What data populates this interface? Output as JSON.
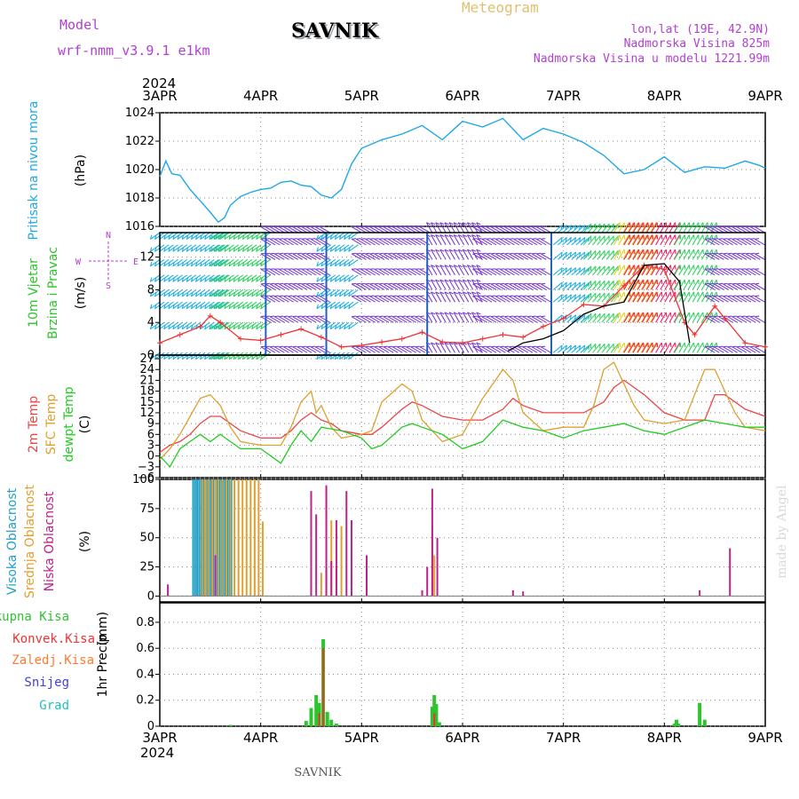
{
  "header": {
    "model_label": "Model",
    "model_name": "wrf-nmm_v3.9.1 e1km",
    "station": "SAVNIK",
    "title": "Meteogram",
    "coords": "lon,lat (19E, 42.9N)",
    "altitude": "Nadmorska Visina 825m",
    "model_altitude": "Nadmorska Visina u modelu 1221.99m",
    "year_top": "2024",
    "year_bottom": "2024",
    "footer_station": "SAVNIK",
    "credit": "made by Angel"
  },
  "colors": {
    "pressure": "#1ea8e6",
    "wind_label": "#2ec42e",
    "wind_legend": "#b040d0",
    "temp2m": "#ee4444",
    "sfc": "#e0a030",
    "dewpt": "#22cc22",
    "visoka": "#22a0c8",
    "srednja": "#e0a030",
    "niska": "#c0208a",
    "ukupna": "#2ec42e",
    "konvek": "#ee3333",
    "zaledj": "#ff7a30",
    "snijeg": "#4040e0",
    "grad": "#20c0c0",
    "header_purple": "#b040d0",
    "header_gold": "#e0c070"
  },
  "chart_data": [
    {
      "type": "line",
      "panel": "pressure",
      "xlabel": "",
      "ylabel": "Pritisak na nivou mora",
      "unit": "(hPa)",
      "x_ticks": [
        "3APR",
        "4APR",
        "5APR",
        "6APR",
        "7APR",
        "8APR",
        "9APR"
      ],
      "ylim": [
        1016,
        1024
      ],
      "y_ticks": [
        1016,
        1018,
        1020,
        1022,
        1024
      ],
      "grid": true,
      "series": [
        {
          "name": "",
          "x": [
            0,
            0.06,
            0.12,
            0.2,
            0.3,
            0.4,
            0.5,
            0.58,
            0.64,
            0.7,
            0.8,
            0.9,
            1.0,
            1.1,
            1.2,
            1.3,
            1.4,
            1.5,
            1.6,
            1.7,
            1.8,
            1.9,
            2.0,
            2.2,
            2.4,
            2.6,
            2.8,
            3.0,
            3.2,
            3.4,
            3.6,
            3.8,
            4.0,
            4.2,
            4.4,
            4.6,
            4.8,
            5.0,
            5.2,
            5.4,
            5.6,
            5.8,
            5.94,
            6.0
          ],
          "y": [
            1019.5,
            1020.6,
            1019.7,
            1019.6,
            1018.6,
            1017.8,
            1017,
            1016.3,
            1016.6,
            1017.5,
            1018.1,
            1018.4,
            1018.6,
            1018.7,
            1019.1,
            1019.2,
            1018.9,
            1018.8,
            1018.2,
            1018,
            1018.6,
            1020.4,
            1021.5,
            1022.1,
            1022.5,
            1023.1,
            1022.1,
            1023.4,
            1023,
            1023.6,
            1022.1,
            1022.9,
            1022.5,
            1021.9,
            1021,
            1019.7,
            1020,
            1020.9,
            1019.8,
            1020.2,
            1020.1,
            1020.6,
            1020.3,
            1020.1
          ]
        }
      ]
    },
    {
      "type": "line",
      "panel": "wind",
      "xlabel": "",
      "ylabel": "10m Vjetar Brzina i Pravac",
      "ylabel_parts": [
        "10m Vjetar",
        "Brzina i Pravac"
      ],
      "unit": "(m/s)",
      "legend_letters": [
        "N",
        "E",
        "W",
        "S"
      ],
      "ylim": [
        0,
        15
      ],
      "y_ticks": [
        0,
        4,
        8,
        12
      ],
      "grid": true,
      "series": [
        {
          "name": "",
          "x": [
            0,
            0.2,
            0.4,
            0.5,
            0.6,
            0.8,
            1.0,
            1.2,
            1.4,
            1.6,
            1.8,
            2.0,
            2.2,
            2.4,
            2.6,
            2.8,
            3.0,
            3.2,
            3.4,
            3.6,
            3.8,
            4.0,
            4.2,
            4.4,
            4.6,
            4.8,
            5.0,
            5.2,
            5.3,
            5.5,
            5.6,
            5.8,
            6.0
          ],
          "y": [
            1.5,
            2.5,
            3.5,
            4.8,
            4.0,
            2.0,
            1.8,
            2.5,
            3.2,
            2.2,
            1.0,
            1.2,
            1.6,
            2.0,
            2.8,
            1.6,
            1.5,
            2.0,
            2.5,
            2.2,
            3.5,
            4.5,
            6.2,
            6.0,
            8.5,
            11.0,
            10.5,
            4.0,
            2.5,
            6.0,
            4.5,
            1.5,
            1.0
          ]
        },
        {
          "name": "",
          "x": [
            3.45,
            3.6,
            3.8,
            4.0,
            4.2,
            4.4,
            4.6,
            4.8,
            5.0,
            5.15,
            5.25
          ],
          "y": [
            0.5,
            1.5,
            2.0,
            3.0,
            5.0,
            6.0,
            6.5,
            11.0,
            11.2,
            9.0,
            1.5
          ]
        }
      ],
      "barb_rows_y": [
        0.3,
        4.0,
        6.5,
        8.0,
        9.8,
        11.7,
        13.5,
        15.0
      ],
      "barb_sections": [
        {
          "x": [
            0.0,
            0.7
          ],
          "color": "#20b0e0",
          "dir": 235
        },
        {
          "x": [
            0.6,
            1.1
          ],
          "color": "#30d060",
          "dir": 235
        },
        {
          "x": [
            1.1,
            1.7
          ],
          "color": "#7a3fd0",
          "dir": 300
        },
        {
          "x": [
            1.65,
            2.0
          ],
          "color": "#20b0e0",
          "dir": 235
        },
        {
          "x": [
            2.0,
            2.7
          ],
          "color": "#7a3fd0",
          "dir": 300
        },
        {
          "x": [
            2.7,
            3.2
          ],
          "color": "#7a3fd0",
          "dir": 330
        },
        {
          "x": [
            3.2,
            3.9
          ],
          "color": "#7a3fd0",
          "dir": 300
        },
        {
          "x": [
            3.9,
            4.2
          ],
          "color": "#20b0e0",
          "dir": 50
        },
        {
          "x": [
            4.2,
            4.5
          ],
          "color": "#30d060",
          "dir": 40
        },
        {
          "x": [
            4.5,
            4.9
          ],
          "color": "#e8d020",
          "dir": 30
        },
        {
          "x": [
            4.6,
            5.1
          ],
          "color": "#ee2060",
          "dir": 30
        },
        {
          "x": [
            5.1,
            5.5
          ],
          "color": "#30d060",
          "dir": 30
        },
        {
          "x": [
            5.5,
            6.0
          ],
          "color": "#7a3fd0",
          "dir": 300
        }
      ]
    },
    {
      "type": "line",
      "panel": "temperature",
      "xlabel": "",
      "ylabel": "2m Temp / SFC Temp / dewpt Temp",
      "ylabel_parts": [
        "2m Temp",
        "SFC Temp",
        "dewpt Temp"
      ],
      "unit": "(C)",
      "ylim": [
        -6,
        28
      ],
      "y_ticks": [
        -6,
        -3,
        0,
        3,
        6,
        9,
        12,
        15,
        18,
        21,
        24,
        27
      ],
      "grid": true,
      "series": [
        {
          "name": "2m Temp",
          "x": [
            0,
            0.1,
            0.2,
            0.3,
            0.4,
            0.5,
            0.6,
            0.7,
            0.8,
            1.0,
            1.2,
            1.3,
            1.4,
            1.5,
            1.6,
            1.7,
            1.8,
            2.0,
            2.1,
            2.2,
            2.4,
            2.5,
            2.6,
            2.8,
            3.0,
            3.2,
            3.4,
            3.5,
            3.6,
            3.8,
            4.0,
            4.2,
            4.4,
            4.5,
            4.6,
            4.8,
            5.0,
            5.2,
            5.4,
            5.5,
            5.6,
            5.8,
            6.0
          ],
          "y": [
            1,
            3,
            4,
            6,
            9,
            11,
            11,
            9,
            7,
            5,
            5,
            7,
            10,
            12,
            10,
            9,
            7,
            6,
            6,
            8,
            13,
            15,
            14,
            11,
            10,
            10,
            13,
            16,
            14,
            12,
            12,
            12,
            15,
            19,
            21,
            17,
            12,
            10,
            10,
            17,
            17,
            13,
            11
          ]
        },
        {
          "name": "SFC Temp",
          "x": [
            0,
            0.1,
            0.2,
            0.3,
            0.4,
            0.5,
            0.6,
            0.7,
            0.8,
            1.0,
            1.2,
            1.3,
            1.4,
            1.5,
            1.55,
            1.6,
            1.7,
            1.8,
            2.0,
            2.1,
            2.2,
            2.4,
            2.5,
            2.6,
            2.8,
            3.0,
            3.2,
            3.4,
            3.5,
            3.6,
            3.8,
            4.0,
            4.2,
            4.3,
            4.4,
            4.5,
            4.6,
            4.7,
            4.8,
            5.0,
            5.2,
            5.3,
            5.4,
            5.5,
            5.6,
            5.7,
            5.8,
            6.0
          ],
          "y": [
            -1,
            2,
            6,
            11,
            16,
            17,
            14,
            8,
            4,
            3,
            3,
            8,
            15,
            18,
            12,
            14,
            8,
            5,
            6,
            7,
            15,
            20,
            18,
            10,
            4,
            6,
            16,
            24,
            21,
            12,
            7,
            8,
            8,
            14,
            24,
            26,
            20,
            14,
            10,
            9,
            10,
            17,
            24,
            24,
            18,
            12,
            8,
            7
          ]
        },
        {
          "name": "dewpt Temp",
          "x": [
            0,
            0.1,
            0.2,
            0.3,
            0.4,
            0.5,
            0.6,
            0.7,
            0.8,
            1.0,
            1.2,
            1.3,
            1.4,
            1.5,
            1.6,
            1.8,
            2.0,
            2.1,
            2.2,
            2.4,
            2.5,
            2.6,
            2.8,
            3.0,
            3.2,
            3.4,
            3.6,
            3.8,
            4.0,
            4.2,
            4.4,
            4.6,
            4.8,
            5.0,
            5.2,
            5.4,
            5.6,
            5.8,
            6.0
          ],
          "y": [
            0,
            -3,
            2,
            4,
            6,
            4,
            6,
            4,
            2,
            2,
            -2,
            3,
            7,
            4,
            8,
            7,
            5,
            2,
            3,
            8,
            9,
            8,
            6,
            2,
            4,
            10,
            8,
            7,
            5,
            7,
            8,
            9,
            7,
            6,
            8,
            10,
            9,
            8,
            8
          ]
        }
      ]
    },
    {
      "type": "bar",
      "panel": "clouds",
      "xlabel": "",
      "ylabel": "Visoka Oblacnost / Srednja Oblacnost / Niska Oblacnost",
      "ylabel_parts": [
        "Visoka Oblacnost",
        "Srednja Oblacnost",
        "Niska Oblacnost"
      ],
      "unit": "(%)",
      "ylim": [
        -5,
        100
      ],
      "y_ticks": [
        0,
        25,
        50,
        75,
        100
      ],
      "grid": true,
      "series": [
        {
          "name": "Visoka Oblacnost",
          "x": [
            0.33,
            0.35,
            0.37,
            0.39,
            0.41,
            0.43,
            0.45,
            0.47,
            0.49,
            0.51,
            0.53,
            0.55,
            0.57,
            0.59,
            0.61,
            0.63,
            0.65,
            0.67,
            0.69,
            0.71
          ],
          "values": [
            100,
            100,
            100,
            100,
            100,
            100,
            100,
            100,
            100,
            100,
            100,
            100,
            100,
            100,
            100,
            100,
            100,
            100,
            100,
            100
          ]
        },
        {
          "name": "Srednja Oblacnost",
          "x": [
            0.42,
            0.45,
            0.48,
            0.52,
            0.55,
            0.58,
            0.62,
            0.66,
            0.7,
            0.74,
            0.78,
            0.82,
            0.86,
            0.9,
            0.94,
            0.98,
            1.02,
            1.6,
            1.65,
            1.7,
            1.75,
            1.8,
            2.7,
            2.72
          ],
          "values": [
            100,
            100,
            100,
            100,
            100,
            100,
            100,
            100,
            100,
            100,
            100,
            100,
            100,
            100,
            100,
            100,
            64,
            20,
            25,
            65,
            25,
            60,
            60,
            35
          ]
        },
        {
          "name": "Niska Oblacnost",
          "x": [
            0.08,
            0.55,
            1.5,
            1.55,
            1.65,
            1.7,
            1.75,
            1.85,
            1.9,
            2.05,
            2.6,
            2.65,
            2.7,
            2.75,
            3.5,
            3.6,
            5.35,
            5.65
          ],
          "values": [
            10,
            35,
            90,
            70,
            95,
            30,
            65,
            90,
            65,
            35,
            5,
            25,
            92,
            50,
            5,
            4,
            5,
            41
          ]
        }
      ]
    },
    {
      "type": "bar",
      "panel": "precip",
      "xlabel": "",
      "ylabel": "1hr Precip",
      "unit": "(mm)",
      "legend_entries": [
        "Ukupna Kisa",
        "Konvek.Kisa",
        "Zaledj.Kisa",
        "Snijeg",
        "Grad"
      ],
      "x_ticks": [
        "3APR",
        "4APR",
        "5APR",
        "6APR",
        "7APR",
        "8APR",
        "9APR"
      ],
      "ylim": [
        0,
        0.95
      ],
      "y_ticks": [
        0,
        0.2,
        0.4,
        0.6,
        0.8
      ],
      "grid": true,
      "series": [
        {
          "name": "Ukupna Kisa",
          "x": [
            0.7,
            1.45,
            1.5,
            1.55,
            1.58,
            1.62,
            1.66,
            1.7,
            1.75,
            2.7,
            2.72,
            2.74,
            2.77,
            5.1,
            5.12,
            5.14,
            5.35,
            5.4
          ],
          "values": [
            0.01,
            0.04,
            0.14,
            0.24,
            0.18,
            0.67,
            0.11,
            0.05,
            0.02,
            0.15,
            0.24,
            0.17,
            0.03,
            0.02,
            0.05,
            0.02,
            0.18,
            0.05
          ]
        },
        {
          "name": "Konvek.Kisa",
          "x": [
            1.58,
            1.62,
            2.72
          ],
          "values": [
            0.1,
            0.6,
            0.1
          ]
        }
      ]
    }
  ]
}
